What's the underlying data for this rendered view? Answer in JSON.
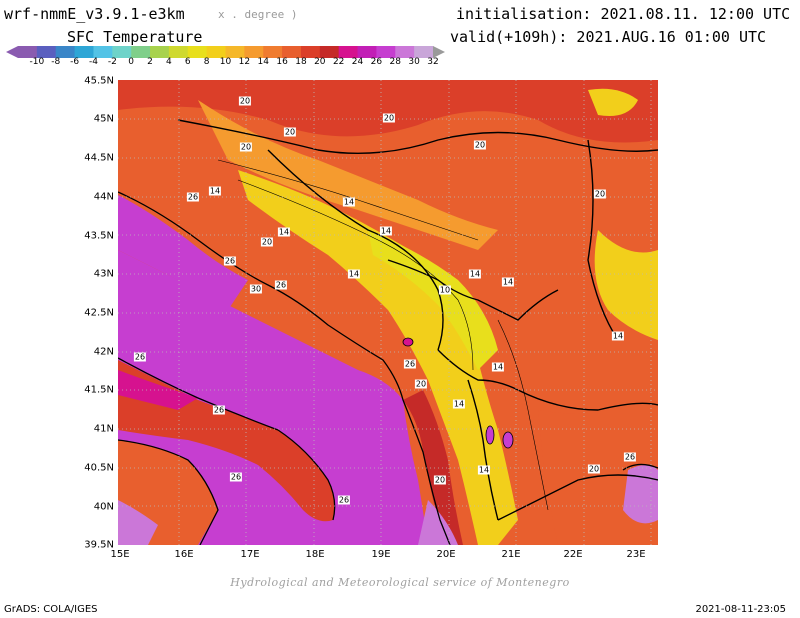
{
  "header": {
    "model": "wrf-nmmE_v3.9.1-e3km",
    "model_sub": "x . degree )",
    "variable": "SFC Temperature",
    "init": "initialisation: 2021.08.11. 12:00 UTC",
    "valid": "valid(+109h): 2021.AUG.16 01:00 UTC"
  },
  "legend": {
    "ticks": [
      "-10",
      "-8",
      "-6",
      "-4",
      "-2",
      "0",
      "2",
      "4",
      "6",
      "8",
      "10",
      "12",
      "14",
      "16",
      "18",
      "20",
      "22",
      "24",
      "26",
      "28",
      "30",
      "32"
    ],
    "colors": [
      "#8a5bb0",
      "#5a5fbf",
      "#3a86c8",
      "#2ea6d6",
      "#53c3e6",
      "#6ed3c9",
      "#7fcf8a",
      "#a8d24d",
      "#cfd92f",
      "#e8df1c",
      "#f2cf1b",
      "#f5b82a",
      "#f59b2f",
      "#f07c30",
      "#e85f2e",
      "#db3f29",
      "#c52a28",
      "#d6128f",
      "#c21fb6",
      "#c63ed0",
      "#cb77d8",
      "#c9a6d9"
    ]
  },
  "map": {
    "lat_labels": [
      "45.5N",
      "45N",
      "44.5N",
      "44N",
      "43.5N",
      "43N",
      "42.5N",
      "42N",
      "41.5N",
      "41N",
      "40.5N",
      "40N",
      "39.5N"
    ],
    "lon_labels": [
      "15E",
      "16E",
      "17E",
      "18E",
      "19E",
      "20E",
      "21E",
      "22E",
      "23E"
    ],
    "contour_labels": [
      "14",
      "14",
      "14",
      "14",
      "14",
      "14",
      "14",
      "14",
      "14",
      "14",
      "10",
      "14",
      "20",
      "20",
      "20",
      "20",
      "20",
      "20",
      "20",
      "20",
      "20",
      "20",
      "26",
      "26",
      "26",
      "26",
      "26",
      "26",
      "26",
      "26",
      "30",
      "26"
    ]
  },
  "footer": {
    "credit": "Hydrological and Meteorological service of Montenegro",
    "software": "GrADS: COLA/IGES",
    "timestamp": "2021-08-11-23:05"
  }
}
